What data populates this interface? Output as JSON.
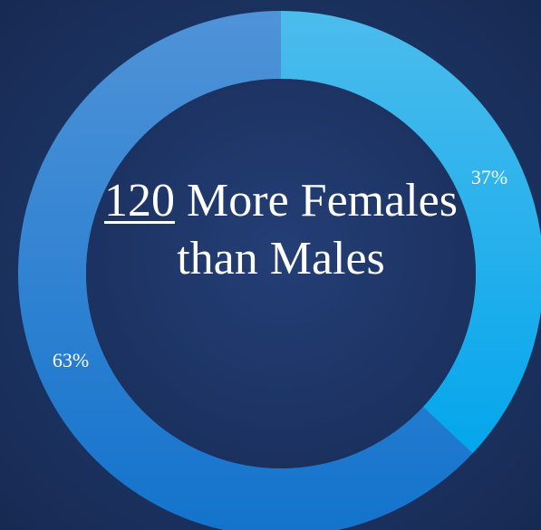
{
  "chart_data": {
    "type": "donut",
    "values": [
      37,
      63
    ],
    "value_labels": [
      "37%",
      "63%"
    ],
    "colors": [
      "#1fb0ee",
      "#2f86d6"
    ],
    "annotation": {
      "number": "120",
      "text": "More Females than Males"
    }
  }
}
